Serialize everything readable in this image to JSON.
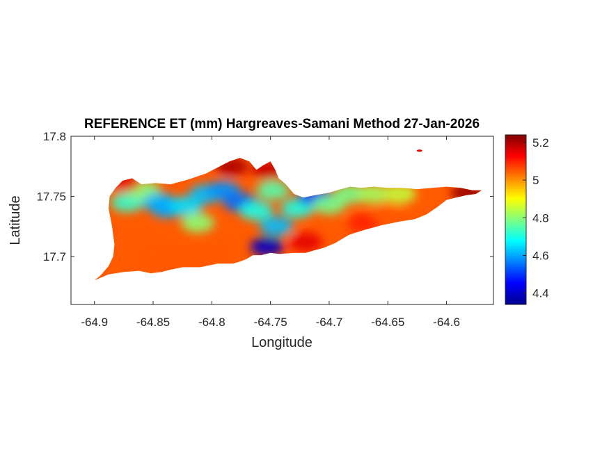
{
  "chart_data": {
    "type": "heatmap",
    "title": "REFERENCE ET (mm) Hargreaves-Samani Method  27-Jan-2026",
    "xlabel": "Longitude",
    "ylabel": "Latitude",
    "xlim": [
      -64.92,
      -64.56
    ],
    "ylim": [
      17.66,
      17.8
    ],
    "xticks": [
      -64.9,
      -64.85,
      -64.8,
      -64.75,
      -64.7,
      -64.65,
      -64.6
    ],
    "xtick_labels": [
      "-64.9",
      "-64.85",
      "-64.8",
      "-64.75",
      "-64.7",
      "-64.65",
      "-64.6"
    ],
    "yticks": [
      17.7,
      17.75,
      17.8
    ],
    "ytick_labels": [
      "17.7",
      "17.75",
      "17.8"
    ],
    "colorbar": {
      "colormap": "jet",
      "range": [
        4.34,
        5.24
      ],
      "ticks": [
        4.4,
        4.6,
        4.8,
        5,
        5.2
      ],
      "tick_labels": [
        "4.4",
        "4.6",
        "4.8",
        "5",
        "5.2"
      ]
    },
    "grid": false,
    "outline": [
      [
        -64.9,
        17.68
      ],
      [
        -64.895,
        17.684
      ],
      [
        -64.888,
        17.692
      ],
      [
        -64.884,
        17.7
      ],
      [
        -64.883,
        17.71
      ],
      [
        -64.885,
        17.725
      ],
      [
        -64.888,
        17.74
      ],
      [
        -64.887,
        17.75
      ],
      [
        -64.882,
        17.757
      ],
      [
        -64.876,
        17.763
      ],
      [
        -64.868,
        17.765
      ],
      [
        -64.86,
        17.76
      ],
      [
        -64.848,
        17.761
      ],
      [
        -64.835,
        17.76
      ],
      [
        -64.82,
        17.764
      ],
      [
        -64.805,
        17.769
      ],
      [
        -64.795,
        17.774
      ],
      [
        -64.785,
        17.779
      ],
      [
        -64.776,
        17.782
      ],
      [
        -64.768,
        17.779
      ],
      [
        -64.762,
        17.772
      ],
      [
        -64.756,
        17.776
      ],
      [
        -64.75,
        17.779
      ],
      [
        -64.746,
        17.772
      ],
      [
        -64.743,
        17.765
      ],
      [
        -64.737,
        17.76
      ],
      [
        -64.73,
        17.752
      ],
      [
        -64.722,
        17.749
      ],
      [
        -64.712,
        17.751
      ],
      [
        -64.7,
        17.753
      ],
      [
        -64.69,
        17.756
      ],
      [
        -64.682,
        17.758
      ],
      [
        -64.673,
        17.757
      ],
      [
        -64.662,
        17.758
      ],
      [
        -64.65,
        17.757
      ],
      [
        -64.638,
        17.757
      ],
      [
        -64.625,
        17.756
      ],
      [
        -64.612,
        17.757
      ],
      [
        -64.6,
        17.758
      ],
      [
        -64.588,
        17.757
      ],
      [
        -64.578,
        17.755
      ],
      [
        -64.57,
        17.755
      ],
      [
        -64.575,
        17.752
      ],
      [
        -64.583,
        17.751
      ],
      [
        -64.592,
        17.749
      ],
      [
        -64.6,
        17.747
      ],
      [
        -64.608,
        17.741
      ],
      [
        -64.617,
        17.735
      ],
      [
        -64.627,
        17.731
      ],
      [
        -64.64,
        17.729
      ],
      [
        -64.655,
        17.726
      ],
      [
        -64.67,
        17.722
      ],
      [
        -64.683,
        17.718
      ],
      [
        -64.695,
        17.711
      ],
      [
        -64.705,
        17.707
      ],
      [
        -64.713,
        17.705
      ],
      [
        -64.72,
        17.703
      ],
      [
        -64.73,
        17.703
      ],
      [
        -64.742,
        17.702
      ],
      [
        -64.75,
        17.703
      ],
      [
        -64.758,
        17.701
      ],
      [
        -64.765,
        17.701
      ],
      [
        -64.77,
        17.698
      ],
      [
        -64.775,
        17.696
      ],
      [
        -64.782,
        17.694
      ],
      [
        -64.795,
        17.694
      ],
      [
        -64.81,
        17.691
      ],
      [
        -64.825,
        17.691
      ],
      [
        -64.835,
        17.689
      ],
      [
        -64.843,
        17.687
      ],
      [
        -64.852,
        17.686
      ],
      [
        -64.862,
        17.688
      ],
      [
        -64.875,
        17.687
      ],
      [
        -64.888,
        17.685
      ],
      [
        -64.9,
        17.68
      ]
    ],
    "islets": [
      {
        "lon": -64.623,
        "lat": 17.788,
        "value": 5.15
      }
    ],
    "field": [
      {
        "lon": -64.872,
        "lat": 17.745,
        "value": 4.72
      },
      {
        "lon": -64.858,
        "lat": 17.755,
        "value": 4.8
      },
      {
        "lon": -64.845,
        "lat": 17.745,
        "value": 4.62
      },
      {
        "lon": -64.838,
        "lat": 17.74,
        "value": 4.6
      },
      {
        "lon": -64.822,
        "lat": 17.742,
        "value": 4.65
      },
      {
        "lon": -64.812,
        "lat": 17.728,
        "value": 4.8
      },
      {
        "lon": -64.805,
        "lat": 17.752,
        "value": 4.62
      },
      {
        "lon": -64.79,
        "lat": 17.755,
        "value": 4.58
      },
      {
        "lon": -64.776,
        "lat": 17.745,
        "value": 4.55
      },
      {
        "lon": -64.762,
        "lat": 17.738,
        "value": 4.7
      },
      {
        "lon": -64.753,
        "lat": 17.708,
        "value": 4.4
      },
      {
        "lon": -64.745,
        "lat": 17.725,
        "value": 4.62
      },
      {
        "lon": -64.748,
        "lat": 17.755,
        "value": 4.75
      },
      {
        "lon": -64.727,
        "lat": 17.74,
        "value": 4.7
      },
      {
        "lon": -64.712,
        "lat": 17.75,
        "value": 4.5
      },
      {
        "lon": -64.7,
        "lat": 17.743,
        "value": 4.78
      },
      {
        "lon": -64.682,
        "lat": 17.752,
        "value": 4.78
      },
      {
        "lon": -64.662,
        "lat": 17.752,
        "value": 4.82
      },
      {
        "lon": -64.64,
        "lat": 17.752,
        "value": 4.85
      },
      {
        "lon": -64.783,
        "lat": 17.775,
        "value": 5.2
      },
      {
        "lon": -64.752,
        "lat": 17.772,
        "value": 5.18
      },
      {
        "lon": -64.875,
        "lat": 17.762,
        "value": 5.15
      },
      {
        "lon": -64.582,
        "lat": 17.753,
        "value": 5.22
      },
      {
        "lon": -64.72,
        "lat": 17.712,
        "value": 5.15
      },
      {
        "lon": -64.84,
        "lat": 17.693,
        "value": 5.05
      },
      {
        "lon": -64.808,
        "lat": 17.7,
        "value": 5.05
      },
      {
        "lon": -64.67,
        "lat": 17.728,
        "value": 5.1
      },
      {
        "lon": -64.65,
        "lat": 17.735,
        "value": 5.05
      }
    ]
  }
}
